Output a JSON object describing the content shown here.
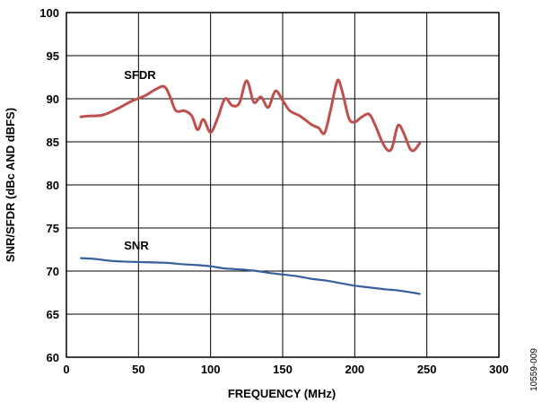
{
  "chart_data": {
    "type": "line",
    "xlabel": "FREQUENCY (MHz)",
    "ylabel": "SNR/SFDR (dBc AND dBFS)",
    "xlim": [
      0,
      300
    ],
    "ylim": [
      60,
      100
    ],
    "xticks": [
      0,
      50,
      100,
      150,
      200,
      250,
      300
    ],
    "yticks": [
      60,
      65,
      70,
      75,
      80,
      85,
      90,
      95,
      100
    ],
    "grid": true,
    "figure_id": "10559-009",
    "series": [
      {
        "name": "SFDR",
        "color": "#c0504d",
        "points": [
          [
            10,
            87.9
          ],
          [
            15,
            88.0
          ],
          [
            25,
            88.1
          ],
          [
            35,
            88.8
          ],
          [
            45,
            89.7
          ],
          [
            55,
            90.4
          ],
          [
            62,
            91.1
          ],
          [
            68,
            91.4
          ],
          [
            72,
            90.2
          ],
          [
            76,
            88.6
          ],
          [
            82,
            88.6
          ],
          [
            87,
            88.0
          ],
          [
            91,
            86.4
          ],
          [
            95,
            87.6
          ],
          [
            100,
            86.1
          ],
          [
            105,
            87.8
          ],
          [
            110,
            90.0
          ],
          [
            115,
            89.2
          ],
          [
            120,
            89.5
          ],
          [
            125,
            92.1
          ],
          [
            130,
            89.6
          ],
          [
            135,
            90.2
          ],
          [
            140,
            89.0
          ],
          [
            145,
            90.9
          ],
          [
            150,
            89.8
          ],
          [
            155,
            88.6
          ],
          [
            162,
            88.0
          ],
          [
            170,
            87.0
          ],
          [
            175,
            86.6
          ],
          [
            179,
            86.0
          ],
          [
            183,
            88.5
          ],
          [
            187,
            91.6
          ],
          [
            189,
            92.1
          ],
          [
            192,
            90.4
          ],
          [
            196,
            87.7
          ],
          [
            200,
            87.3
          ],
          [
            205,
            87.9
          ],
          [
            210,
            88.2
          ],
          [
            214,
            87.0
          ],
          [
            219,
            85.0
          ],
          [
            223,
            84.0
          ],
          [
            226,
            84.4
          ],
          [
            230,
            86.9
          ],
          [
            234,
            86.0
          ],
          [
            238,
            84.3
          ],
          [
            241,
            84.0
          ],
          [
            245,
            84.8
          ]
        ]
      },
      {
        "name": "SNR",
        "color": "#365f9c",
        "points": [
          [
            10,
            71.5
          ],
          [
            20,
            71.4
          ],
          [
            30,
            71.2
          ],
          [
            40,
            71.1
          ],
          [
            50,
            71.05
          ],
          [
            60,
            71.0
          ],
          [
            70,
            70.95
          ],
          [
            80,
            70.8
          ],
          [
            90,
            70.7
          ],
          [
            100,
            70.55
          ],
          [
            110,
            70.3
          ],
          [
            120,
            70.2
          ],
          [
            130,
            70.05
          ],
          [
            140,
            69.8
          ],
          [
            150,
            69.6
          ],
          [
            160,
            69.4
          ],
          [
            170,
            69.1
          ],
          [
            180,
            68.9
          ],
          [
            190,
            68.6
          ],
          [
            200,
            68.3
          ],
          [
            210,
            68.1
          ],
          [
            220,
            67.9
          ],
          [
            230,
            67.75
          ],
          [
            240,
            67.5
          ],
          [
            245,
            67.35
          ]
        ]
      }
    ]
  }
}
